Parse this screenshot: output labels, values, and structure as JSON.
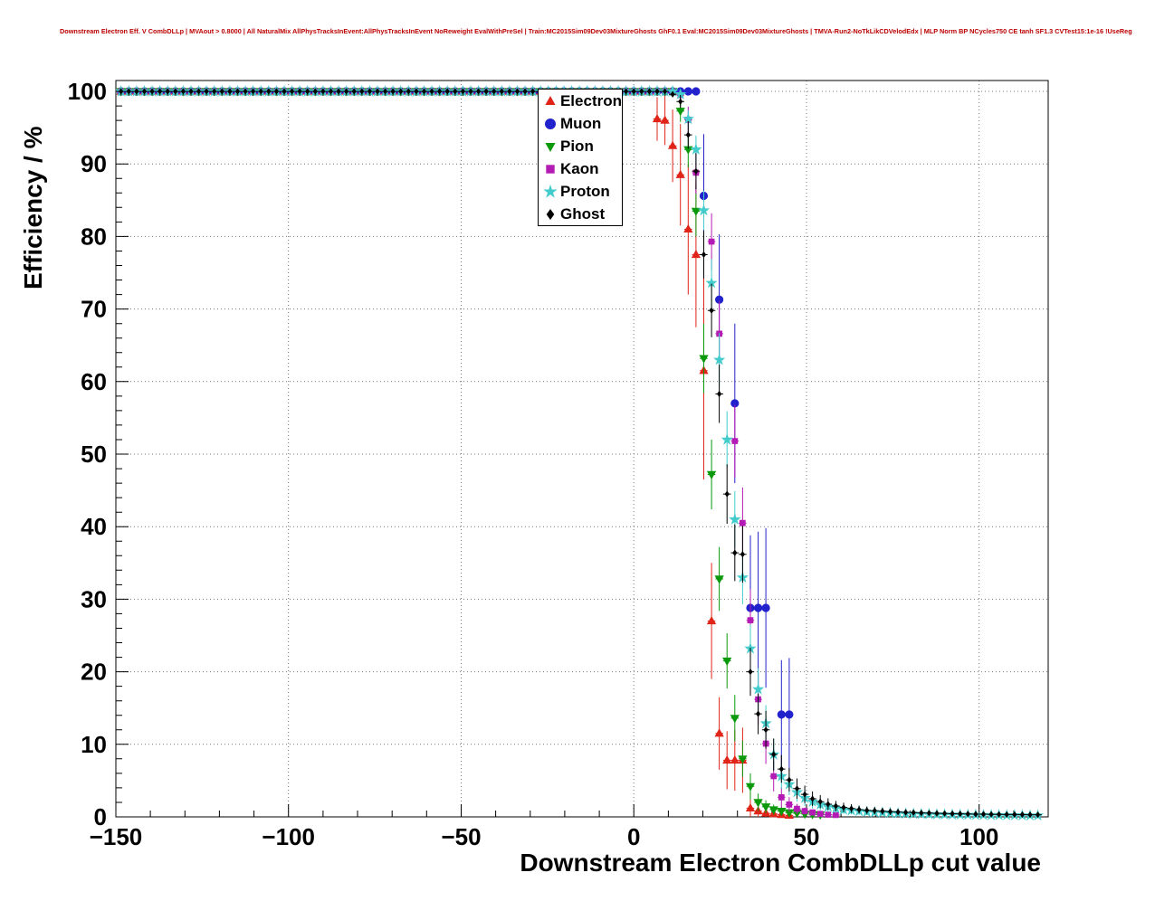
{
  "chart_data": {
    "type": "scatter",
    "title": "Downstream Electron Eff. V CombDLLp | MVAout > 0.8000 | All NaturalMix AllPhysTracksInEvent:AllPhysTracksInEvent NoReweight EvalWithPreSel | Train:MC2015Sim09Dev03MixtureGhosts GhF0.1 Eval:MC2015Sim09Dev03MixtureGhosts | TMVA-Run2-NoTkLikCDVelodEdx | MLP Norm BP NCycles750 CE tanh SF1.3 CVTest15:1e-16 !UseReg",
    "xlabel": "Downstream Electron CombDLLp cut value",
    "ylabel": "Efficiency / %",
    "xlim": [
      -150,
      120
    ],
    "ylim": [
      0,
      100
    ],
    "ylim_draw": [
      0,
      101.5
    ],
    "grid": true,
    "grid_color": "#777777",
    "legend_position": "top-center",
    "bin_half_width": 1.12,
    "x_ticks": {
      "values": [
        -150,
        -100,
        -50,
        0,
        50,
        100
      ],
      "labels": [
        "−150",
        "−100",
        "−50",
        "0",
        "50",
        "100"
      ],
      "minor_step": 10
    },
    "y_ticks": {
      "values": [
        0,
        10,
        20,
        30,
        40,
        50,
        60,
        70,
        80,
        90,
        100
      ],
      "labels": [
        "0",
        "10",
        "20",
        "30",
        "40",
        "50",
        "60",
        "70",
        "80",
        "90",
        "100"
      ],
      "minor_step": 2
    },
    "flat_region": {
      "x_start": -148.5,
      "step": 2.25,
      "y": 100,
      "err": 0.12
    },
    "series": [
      {
        "name": "Electron",
        "color": "#e02418",
        "marker": "triangle-up",
        "marker_size": 5.5,
        "flat_until": 4.5,
        "points": [
          [
            6.75,
            96.2,
            3.0
          ],
          [
            9,
            96.0,
            3.4
          ],
          [
            11.25,
            92.5,
            5.0
          ],
          [
            13.5,
            88.5,
            7.0
          ],
          [
            15.75,
            81.0,
            9.0
          ],
          [
            18,
            77.5,
            10.0
          ],
          [
            20.25,
            61.5,
            15.0
          ],
          [
            22.5,
            27.0,
            8.0
          ],
          [
            24.75,
            11.5,
            5.0
          ],
          [
            27,
            7.8,
            4.0
          ],
          [
            29.25,
            7.8,
            4.2
          ],
          [
            31.5,
            7.8,
            4.5
          ],
          [
            33.75,
            1.2,
            1.2
          ],
          [
            36,
            0.8,
            0.8
          ],
          [
            38.25,
            0.5,
            0.5
          ],
          [
            40.5,
            0.4,
            0.4
          ],
          [
            42.75,
            0.3,
            0.3
          ],
          [
            45,
            0.2,
            0.2
          ]
        ]
      },
      {
        "name": "Muon",
        "color": "#2222cc",
        "marker": "circle",
        "marker_size": 4.6,
        "flat_until": 18.0,
        "points": [
          [
            20.25,
            85.6,
            8.5
          ],
          [
            24.75,
            71.3,
            9.0
          ],
          [
            29.25,
            57.0,
            11.0
          ],
          [
            33.75,
            28.8,
            10.0
          ],
          [
            36,
            28.8,
            10.5
          ],
          [
            38.25,
            28.8,
            11.0
          ],
          [
            42.75,
            14.1,
            7.5
          ],
          [
            45,
            14.1,
            7.8
          ]
        ]
      },
      {
        "name": "Pion",
        "color": "#0a990a",
        "marker": "triangle-down",
        "marker_size": 5.5,
        "flat_until": 11.25,
        "points": [
          [
            13.5,
            97.3,
            1.5
          ],
          [
            15.75,
            92.0,
            2.5
          ],
          [
            18,
            83.5,
            3.5
          ],
          [
            20.25,
            63.2,
            4.8
          ],
          [
            22.5,
            47.2,
            4.8
          ],
          [
            24.75,
            32.8,
            4.4
          ],
          [
            27,
            21.5,
            3.8
          ],
          [
            29.25,
            13.6,
            3.2
          ],
          [
            31.5,
            8.0,
            2.5
          ],
          [
            33.75,
            4.2,
            1.8
          ],
          [
            36,
            2.0,
            1.2
          ],
          [
            38.25,
            1.4,
            0.9
          ],
          [
            40.5,
            1.0,
            0.7
          ],
          [
            42.75,
            0.8,
            0.6
          ],
          [
            45,
            0.6,
            0.5
          ],
          [
            47.25,
            0.5,
            0.4
          ],
          [
            49.5,
            0.4,
            0.3
          ],
          [
            51.75,
            0.35,
            0.3
          ],
          [
            54,
            0.3,
            0.25
          ]
        ]
      },
      {
        "name": "Kaon",
        "color": "#b41bb4",
        "marker": "square",
        "marker_size": 4.3,
        "flat_until": 11.25,
        "points": [
          [
            13.5,
            99.5,
            0.5
          ],
          [
            15.75,
            96.1,
            1.8
          ],
          [
            18,
            88.8,
            2.9
          ],
          [
            22.5,
            79.3,
            3.9
          ],
          [
            24.75,
            66.6,
            4.5
          ],
          [
            29.25,
            51.8,
            5.0
          ],
          [
            31.5,
            40.5,
            4.9
          ],
          [
            33.75,
            27.1,
            4.3
          ],
          [
            36,
            16.2,
            3.5
          ],
          [
            38.25,
            10.1,
            2.8
          ],
          [
            40.5,
            5.6,
            2.1
          ],
          [
            42.75,
            2.7,
            1.4
          ],
          [
            45,
            1.7,
            1.0
          ],
          [
            47.25,
            1.1,
            0.7
          ],
          [
            49.5,
            0.8,
            0.5
          ],
          [
            51.75,
            0.6,
            0.4
          ],
          [
            54,
            0.4,
            0.3
          ],
          [
            56.25,
            0.3,
            0.25
          ],
          [
            58.5,
            0.25,
            0.2
          ]
        ]
      },
      {
        "name": "Proton",
        "color": "#44cccc",
        "marker": "star",
        "marker_size": 5.2,
        "flat_until": 11.25,
        "points": [
          [
            13.5,
            99.6,
            0.4
          ],
          [
            15.75,
            96.2,
            1.2
          ],
          [
            18,
            92.0,
            1.9
          ],
          [
            20.25,
            83.6,
            2.7
          ],
          [
            22.5,
            73.6,
            3.3
          ],
          [
            24.75,
            63.0,
            3.7
          ],
          [
            27,
            52.0,
            3.9
          ],
          [
            29.25,
            41.0,
            3.9
          ],
          [
            31.5,
            33.0,
            3.7
          ],
          [
            33.75,
            23.2,
            3.3
          ],
          [
            36,
            17.6,
            2.9
          ],
          [
            38.25,
            12.9,
            2.5
          ],
          [
            40.5,
            8.6,
            2.1
          ],
          [
            42.75,
            5.6,
            1.7
          ],
          [
            45,
            4.5,
            1.5
          ],
          [
            47.25,
            3.4,
            1.3
          ],
          [
            49.5,
            2.6,
            1.1
          ],
          [
            51.75,
            2.1,
            0.95
          ],
          [
            54,
            1.7,
            0.85
          ],
          [
            56.25,
            1.4,
            0.75
          ],
          [
            58.5,
            1.2,
            0.65
          ],
          [
            60.75,
            1.0,
            0.6
          ],
          [
            63,
            0.9,
            0.55
          ],
          [
            65.25,
            0.8,
            0.5
          ],
          [
            67.5,
            0.7,
            0.45
          ],
          [
            69.75,
            0.65,
            0.4
          ],
          [
            72,
            0.6,
            0.38
          ],
          [
            74.25,
            0.55,
            0.36
          ],
          [
            76.5,
            0.5,
            0.34
          ],
          [
            78.75,
            0.45,
            0.32
          ],
          [
            81,
            0.42,
            0.3
          ],
          [
            83.25,
            0.4,
            0.28
          ],
          [
            85.5,
            0.38,
            0.27
          ],
          [
            87.75,
            0.35,
            0.26
          ],
          [
            90,
            0.33,
            0.25
          ],
          [
            92.25,
            0.31,
            0.24
          ],
          [
            94.5,
            0.3,
            0.23
          ],
          [
            96.75,
            0.28,
            0.22
          ],
          [
            99,
            0.27,
            0.21
          ],
          [
            101.25,
            0.26,
            0.2
          ],
          [
            103.5,
            0.25,
            0.2
          ],
          [
            105.75,
            0.24,
            0.19
          ],
          [
            108,
            0.23,
            0.19
          ],
          [
            110.25,
            0.22,
            0.18
          ],
          [
            112.5,
            0.21,
            0.18
          ],
          [
            114.75,
            0.2,
            0.17
          ],
          [
            117,
            0.2,
            0.17
          ]
        ]
      },
      {
        "name": "Ghost",
        "color": "#000000",
        "marker": "diamond",
        "marker_size": 3.6,
        "flat_until": 9.0,
        "points": [
          [
            11.25,
            99.6,
            0.4
          ],
          [
            13.5,
            98.6,
            0.9
          ],
          [
            15.75,
            94.0,
            1.9
          ],
          [
            18,
            89.0,
            2.5
          ],
          [
            20.25,
            77.5,
            3.3
          ],
          [
            22.5,
            69.8,
            3.7
          ],
          [
            24.75,
            58.3,
            4.0
          ],
          [
            27,
            44.5,
            4.1
          ],
          [
            29.25,
            36.4,
            3.9
          ],
          [
            31.5,
            36.2,
            3.9
          ],
          [
            33.75,
            20.0,
            3.3
          ],
          [
            36,
            14.2,
            2.8
          ],
          [
            38.25,
            12.0,
            2.6
          ],
          [
            40.5,
            8.6,
            2.2
          ],
          [
            42.75,
            6.6,
            1.9
          ],
          [
            45,
            5.1,
            1.6
          ],
          [
            47.25,
            3.9,
            1.4
          ],
          [
            49.5,
            3.1,
            1.2
          ],
          [
            51.75,
            2.5,
            1.0
          ],
          [
            54,
            2.1,
            0.9
          ],
          [
            56.25,
            1.75,
            0.8
          ],
          [
            58.5,
            1.5,
            0.7
          ],
          [
            60.75,
            1.3,
            0.65
          ],
          [
            63,
            1.15,
            0.6
          ],
          [
            65.25,
            1.0,
            0.55
          ],
          [
            67.5,
            0.9,
            0.5
          ],
          [
            69.75,
            0.85,
            0.48
          ],
          [
            72,
            0.78,
            0.45
          ],
          [
            74.25,
            0.72,
            0.43
          ],
          [
            76.5,
            0.67,
            0.41
          ],
          [
            78.75,
            0.62,
            0.39
          ],
          [
            81,
            0.58,
            0.37
          ],
          [
            83.25,
            0.55,
            0.35
          ],
          [
            85.5,
            0.52,
            0.34
          ],
          [
            87.75,
            0.49,
            0.32
          ],
          [
            90,
            0.46,
            0.31
          ],
          [
            92.25,
            0.44,
            0.3
          ],
          [
            94.5,
            0.42,
            0.29
          ],
          [
            96.75,
            0.4,
            0.28
          ],
          [
            99,
            0.38,
            0.27
          ],
          [
            101.25,
            0.37,
            0.26
          ],
          [
            103.5,
            0.35,
            0.25
          ],
          [
            105.75,
            0.34,
            0.25
          ],
          [
            108,
            0.33,
            0.24
          ],
          [
            110.25,
            0.32,
            0.24
          ],
          [
            112.5,
            0.31,
            0.23
          ],
          [
            114.75,
            0.3,
            0.23
          ],
          [
            117,
            0.3,
            0.22
          ]
        ]
      }
    ]
  }
}
